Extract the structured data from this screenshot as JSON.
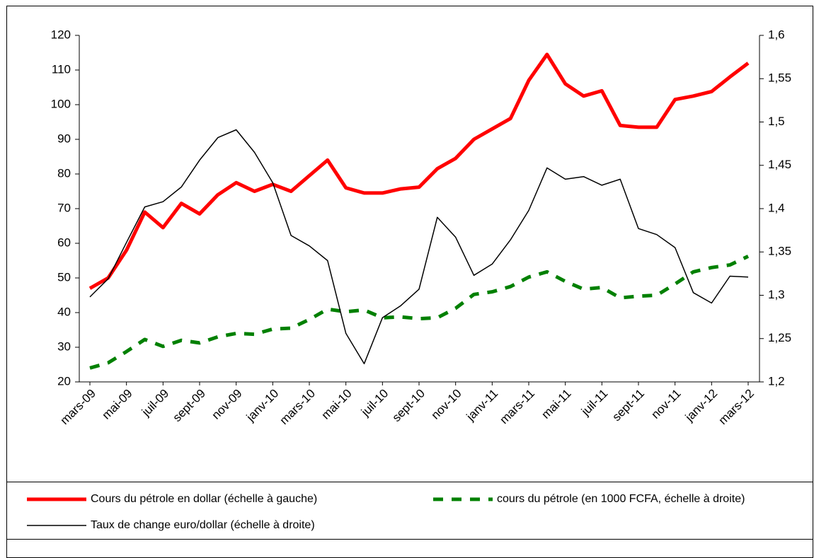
{
  "chart_data": {
    "type": "line",
    "categories": [
      "mars-09",
      null,
      "mai-09",
      null,
      "juil-09",
      null,
      "sept-09",
      null,
      "nov-09",
      null,
      "janv-10",
      null,
      "mars-10",
      null,
      "mai-10",
      null,
      "juil-10",
      null,
      "sept-10",
      null,
      "nov-10",
      null,
      "janv-11",
      null,
      "mars-11",
      null,
      "mai-11",
      null,
      "juil-11",
      null,
      "sept-11",
      null,
      "nov-11",
      null,
      "janv-12",
      null,
      "mars-12"
    ],
    "series": [
      {
        "name": "Cours du pétrole en dollar (échelle à gauche)",
        "color": "#ff0000",
        "linewidth": 5,
        "style": "solid",
        "axis": "y",
        "values": [
          47,
          50,
          58,
          69,
          64.5,
          71.5,
          68.5,
          74,
          77.5,
          75,
          77,
          75,
          79.5,
          84,
          76,
          74.5,
          74.5,
          75.7,
          76.2,
          81.5,
          84.5,
          90,
          93,
          96,
          107,
          114.5,
          106,
          102.5,
          104,
          94,
          93.5,
          93.5,
          101.5,
          102.5,
          103.8,
          108,
          112
        ]
      },
      {
        "name": "cours du pétrole (en 1000 FCFA, échelle à droite)",
        "color": "#008000",
        "linewidth": 5,
        "style": "dashed",
        "axis": "y2",
        "values": [
          1.216,
          1.222,
          1.235,
          1.249,
          1.241,
          1.248,
          1.245,
          1.252,
          1.256,
          1.255,
          1.261,
          1.262,
          1.272,
          1.284,
          1.281,
          1.283,
          1.274,
          1.275,
          1.273,
          1.274,
          1.285,
          1.301,
          1.304,
          1.31,
          1.321,
          1.327,
          1.316,
          1.307,
          1.309,
          1.297,
          1.299,
          1.3,
          1.313,
          1.327,
          1.332,
          1.335,
          1.345
        ]
      },
      {
        "name": "Taux de change euro/dollar (échelle à droite)",
        "color": "#000000",
        "linewidth": 1.5,
        "style": "solid",
        "axis": "y2",
        "values": [
          1.298,
          1.319,
          1.361,
          1.402,
          1.408,
          1.425,
          1.456,
          1.482,
          1.491,
          1.465,
          1.43,
          1.369,
          1.357,
          1.34,
          1.256,
          1.221,
          1.274,
          1.288,
          1.307,
          1.39,
          1.367,
          1.323,
          1.336,
          1.364,
          1.398,
          1.447,
          1.434,
          1.437,
          1.427,
          1.434,
          1.377,
          1.37,
          1.355,
          1.303,
          1.291,
          1.322,
          1.321
        ]
      }
    ],
    "ylim": [
      20,
      120
    ],
    "yticks": [
      20,
      30,
      40,
      50,
      60,
      70,
      80,
      90,
      100,
      110,
      120
    ],
    "y2lim": [
      1.2,
      1.6
    ],
    "y2ticks": [
      {
        "value": 1.2,
        "label": "1,2"
      },
      {
        "value": 1.25,
        "label": "1,25"
      },
      {
        "value": 1.3,
        "label": "1,3"
      },
      {
        "value": 1.35,
        "label": "1,35"
      },
      {
        "value": 1.4,
        "label": "1,4"
      },
      {
        "value": 1.45,
        "label": "1,45"
      },
      {
        "value": 1.5,
        "label": "1,5"
      },
      {
        "value": 1.55,
        "label": "1,55"
      },
      {
        "value": 1.6,
        "label": "1,6"
      }
    ],
    "grid": false,
    "legend": "bottom"
  }
}
